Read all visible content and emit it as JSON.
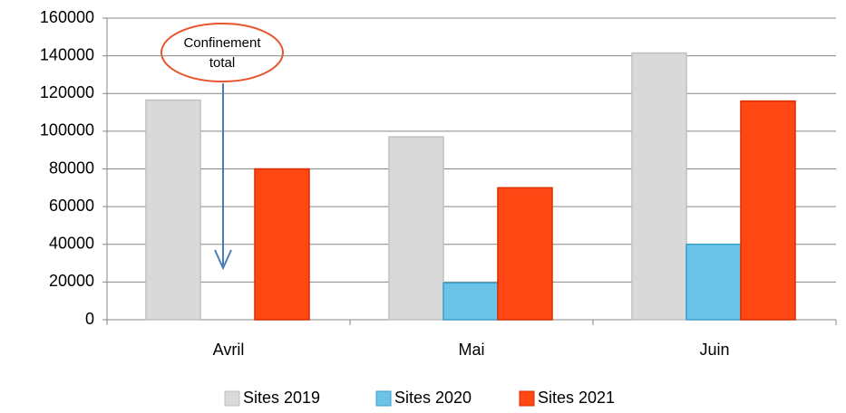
{
  "chart_data": {
    "type": "bar",
    "categories": [
      "Avril",
      "Mai",
      "Juin"
    ],
    "series": [
      {
        "name": "Sites 2019",
        "color": "#d9d9d9",
        "stroke": "#bfbfbf",
        "values": [
          116500,
          97000,
          141500
        ]
      },
      {
        "name": "Sites 2020",
        "color": "#6cc3e8",
        "stroke": "#3aa0d0",
        "values": [
          0,
          19500,
          40000
        ]
      },
      {
        "name": "Sites 2021",
        "color": "#ff4713",
        "stroke": "#d92d00",
        "values": [
          80000,
          70000,
          116000
        ]
      }
    ],
    "ylim": [
      0,
      160000
    ],
    "yticks": [
      0,
      20000,
      40000,
      60000,
      80000,
      100000,
      120000,
      140000,
      160000
    ],
    "grid": true,
    "legend": "bottom",
    "annotation": {
      "lines": [
        "Confinement",
        "total"
      ]
    }
  }
}
